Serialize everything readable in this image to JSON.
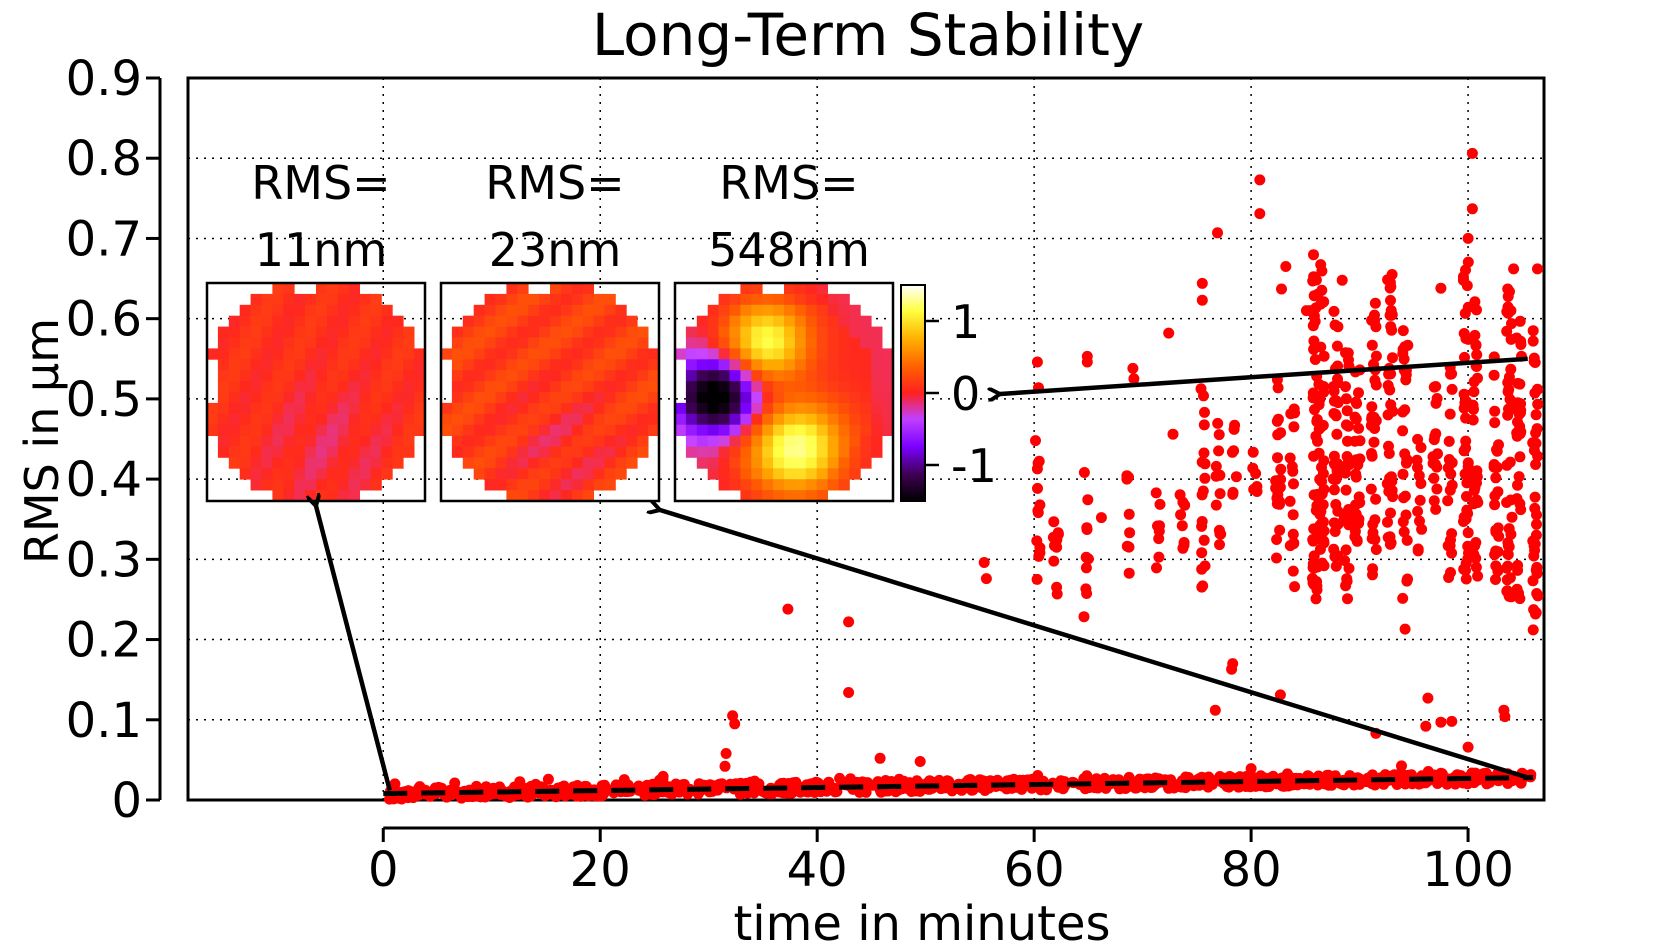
{
  "chart_data": {
    "type": "scatter",
    "title": "Long-Term Stability",
    "xlabel": "time in minutes",
    "ylabel": "RMS in µm",
    "xlim": [
      -18,
      107
    ],
    "ylim": [
      0,
      0.9
    ],
    "x_ticks": [
      0,
      20,
      40,
      60,
      80,
      100
    ],
    "x_tick_labels": [
      "0",
      "20",
      "40",
      "60",
      "80",
      "100"
    ],
    "y_ticks": [
      0,
      0.1,
      0.2,
      0.3,
      0.4,
      0.5,
      0.6,
      0.7,
      0.8,
      0.9
    ],
    "y_tick_labels": [
      "0",
      "0.1",
      "0.2",
      "0.3",
      "0.4",
      "0.5",
      "0.6",
      "0.7",
      "0.8",
      "0.9"
    ],
    "grid": true,
    "point_color": "#ff0000",
    "trend_line": {
      "x": [
        0,
        106
      ],
      "y": [
        0.008,
        0.028
      ],
      "style": "dashed"
    },
    "baseline": {
      "x_start": 0.5,
      "x_end": 106,
      "y_start": 0.008,
      "y_end": 0.028
    },
    "outliers": [
      [
        32.2,
        0.105
      ],
      [
        32.4,
        0.095
      ],
      [
        31.6,
        0.058
      ],
      [
        31.5,
        0.042
      ],
      [
        37.3,
        0.238
      ],
      [
        42.9,
        0.222
      ],
      [
        42.9,
        0.134
      ],
      [
        45.8,
        0.052
      ],
      [
        49.5,
        0.048
      ],
      [
        55.4,
        0.296
      ],
      [
        55.6,
        0.276
      ],
      [
        60.3,
        0.546
      ],
      [
        60.4,
        0.514
      ],
      [
        64.9,
        0.553
      ],
      [
        64.9,
        0.546
      ],
      [
        69.1,
        0.538
      ],
      [
        69.2,
        0.525
      ],
      [
        72.4,
        0.582
      ],
      [
        72.8,
        0.456
      ],
      [
        76.9,
        0.707
      ],
      [
        75.5,
        0.644
      ],
      [
        75.5,
        0.623
      ],
      [
        80.8,
        0.773
      ],
      [
        80.8,
        0.731
      ],
      [
        83.2,
        0.665
      ],
      [
        82.8,
        0.637
      ],
      [
        85.4,
        0.61
      ],
      [
        88.4,
        0.648
      ],
      [
        93.0,
        0.655
      ],
      [
        91.5,
        0.59
      ],
      [
        97.5,
        0.638
      ],
      [
        100.4,
        0.806
      ],
      [
        100.4,
        0.737
      ],
      [
        100.0,
        0.7
      ],
      [
        104.2,
        0.662
      ],
      [
        106.4,
        0.662
      ],
      [
        106.0,
        0.585
      ],
      [
        106.0,
        0.572
      ],
      [
        78.3,
        0.17
      ],
      [
        78.2,
        0.163
      ],
      [
        82.7,
        0.131
      ],
      [
        76.7,
        0.112
      ],
      [
        96.3,
        0.127
      ],
      [
        91.5,
        0.083
      ],
      [
        97.5,
        0.097
      ],
      [
        98.5,
        0.098
      ],
      [
        96.1,
        0.092
      ],
      [
        100.0,
        0.066
      ],
      [
        103.3,
        0.112
      ],
      [
        103.4,
        0.104
      ],
      [
        94.2,
        0.213
      ],
      [
        106.0,
        0.212
      ],
      [
        85.1,
        0.61
      ],
      [
        66.2,
        0.352
      ]
    ],
    "upper_columns": [
      {
        "x": 60.3,
        "ymin": 0.26,
        "ymax": 0.448,
        "n": 14
      },
      {
        "x": 62.0,
        "ymin": 0.236,
        "ymax": 0.378,
        "n": 12
      },
      {
        "x": 64.8,
        "ymin": 0.226,
        "ymax": 0.412,
        "n": 10
      },
      {
        "x": 68.8,
        "ymin": 0.28,
        "ymax": 0.41,
        "n": 8
      },
      {
        "x": 71.5,
        "ymin": 0.28,
        "ymax": 0.42,
        "n": 8
      },
      {
        "x": 73.7,
        "ymin": 0.31,
        "ymax": 0.43,
        "n": 8
      },
      {
        "x": 75.5,
        "ymin": 0.24,
        "ymax": 0.52,
        "n": 18
      },
      {
        "x": 77.0,
        "ymin": 0.3,
        "ymax": 0.5,
        "n": 12
      },
      {
        "x": 78.5,
        "ymin": 0.36,
        "ymax": 0.47,
        "n": 7
      },
      {
        "x": 80.4,
        "ymin": 0.36,
        "ymax": 0.45,
        "n": 6
      },
      {
        "x": 82.5,
        "ymin": 0.24,
        "ymax": 0.53,
        "n": 20
      },
      {
        "x": 83.8,
        "ymin": 0.26,
        "ymax": 0.5,
        "n": 16
      },
      {
        "x": 85.9,
        "ymin": 0.25,
        "ymax": 0.69,
        "n": 45
      },
      {
        "x": 86.5,
        "ymin": 0.27,
        "ymax": 0.68,
        "n": 40
      },
      {
        "x": 87.8,
        "ymin": 0.28,
        "ymax": 0.61,
        "n": 35
      },
      {
        "x": 88.8,
        "ymin": 0.25,
        "ymax": 0.57,
        "n": 30
      },
      {
        "x": 89.8,
        "ymin": 0.3,
        "ymax": 0.56,
        "n": 25
      },
      {
        "x": 91.3,
        "ymin": 0.28,
        "ymax": 0.62,
        "n": 30
      },
      {
        "x": 92.8,
        "ymin": 0.3,
        "ymax": 0.65,
        "n": 35
      },
      {
        "x": 94.2,
        "ymin": 0.23,
        "ymax": 0.6,
        "n": 28
      },
      {
        "x": 95.5,
        "ymin": 0.3,
        "ymax": 0.45,
        "n": 12
      },
      {
        "x": 97.0,
        "ymin": 0.31,
        "ymax": 0.52,
        "n": 16
      },
      {
        "x": 98.3,
        "ymin": 0.27,
        "ymax": 0.56,
        "n": 20
      },
      {
        "x": 99.8,
        "ymin": 0.27,
        "ymax": 0.68,
        "n": 38
      },
      {
        "x": 100.7,
        "ymin": 0.26,
        "ymax": 0.64,
        "n": 30
      },
      {
        "x": 102.6,
        "ymin": 0.27,
        "ymax": 0.56,
        "n": 25
      },
      {
        "x": 103.8,
        "ymin": 0.25,
        "ymax": 0.64,
        "n": 40
      },
      {
        "x": 104.7,
        "ymin": 0.25,
        "ymax": 0.6,
        "n": 30
      },
      {
        "x": 106.2,
        "ymin": 0.23,
        "ymax": 0.56,
        "n": 35
      }
    ],
    "insets": [
      {
        "label_line1": "RMS=",
        "label_line2": "11nm",
        "variant": "uniform-low"
      },
      {
        "label_line1": "RMS=",
        "label_line2": "23nm",
        "variant": "uniform-mid"
      },
      {
        "label_line1": "RMS=",
        "label_line2": "548nm",
        "variant": "aberrated"
      }
    ],
    "colorbar": {
      "tick_labels": [
        "1",
        "0",
        "-1"
      ],
      "tick_values": [
        1,
        0,
        -1
      ],
      "range": [
        -1.5,
        1.5
      ],
      "colormap": [
        "#000000",
        "#3c0050",
        "#7a00ff",
        "#c040ff",
        "#ff3030",
        "#ff6000",
        "#ffb000",
        "#ffff40",
        "#ffffff"
      ]
    },
    "arrows": [
      {
        "from": [
          0.6,
          0.012
        ],
        "to_inset": 0
      },
      {
        "from": [
          105.5,
          0.028
        ],
        "to_inset": 1
      },
      {
        "from": [
          105.5,
          0.55
        ],
        "to_colorbar_value": 0
      }
    ]
  }
}
